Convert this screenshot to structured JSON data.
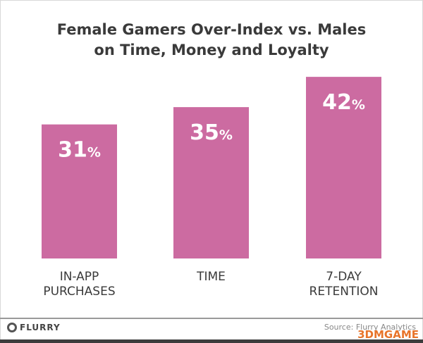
{
  "chart_data": {
    "type": "bar",
    "title": "Female Gamers Over-Index vs. Males on Time, Money and Loyalty",
    "title_lines": [
      "Female Gamers Over-Index vs. Males",
      "on Time, Money and Loyalty"
    ],
    "categories": [
      [
        "IN-APP",
        "PURCHASES"
      ],
      [
        "TIME"
      ],
      [
        "7-DAY",
        "RETENTION"
      ]
    ],
    "values": [
      31,
      35,
      42
    ],
    "data_labels": [
      "31",
      "35",
      "42"
    ],
    "unit": "%",
    "ylim": [
      0,
      50
    ],
    "grid": false,
    "bar_color": "#cc6ba1",
    "xlabel": "",
    "ylabel": ""
  },
  "footer": {
    "logo": "FLURRY",
    "source": "Source: Flurry Analytics",
    "watermark": "3DMGAME"
  }
}
